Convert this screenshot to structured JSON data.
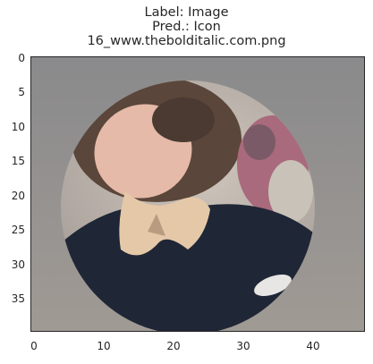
{
  "title": {
    "line1": "Label: Image",
    "line2": "Pred.: Icon",
    "line3": "16_www.thebolditalic.com.png"
  },
  "axes": {
    "x_ticks": [
      "0",
      "10",
      "20",
      "30",
      "40"
    ],
    "y_ticks": [
      "0",
      "5",
      "10",
      "15",
      "20",
      "25",
      "30",
      "35"
    ],
    "xlim": [
      0,
      48
    ],
    "ylim": [
      40,
      0
    ]
  },
  "image": {
    "description_colors": {
      "background": "#8f8f8f",
      "circle_bg": "#d8d0c8",
      "face": "#e4b8a6",
      "hair": "#4a3a32",
      "scarf": "#e2c7a6",
      "jacket": "#1e2535",
      "flowers": "#b0607a"
    }
  }
}
